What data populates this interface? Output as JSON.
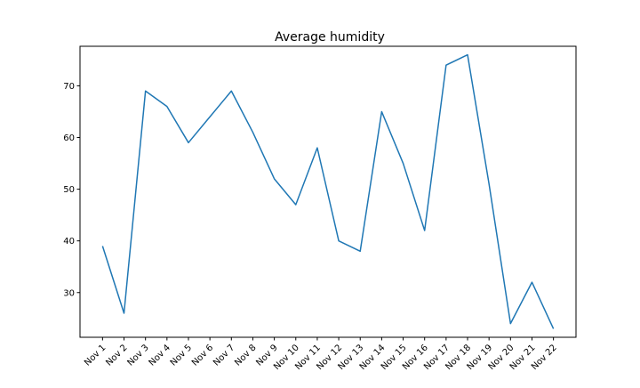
{
  "chart_data": {
    "type": "line",
    "title": "Average humidity",
    "xlabel": "",
    "ylabel": "",
    "categories": [
      "Nov 1",
      "Nov 2",
      "Nov 3",
      "Nov 4",
      "Nov 5",
      "Nov 6",
      "Nov 7",
      "Nov 8",
      "Nov 9",
      "Nov 10",
      "Nov 11",
      "Nov 12",
      "Nov 13",
      "Nov 14",
      "Nov 15",
      "Nov 16",
      "Nov 17",
      "Nov 18",
      "Nov 19",
      "Nov 20",
      "Nov 21",
      "Nov 22"
    ],
    "series": [
      {
        "values": [
          39,
          26,
          69,
          66,
          59,
          64,
          69,
          61,
          52,
          47,
          58,
          40,
          38,
          65,
          55,
          42,
          74,
          76,
          51,
          24,
          32,
          23
        ]
      }
    ],
    "ylim": [
      21.35,
      77.65
    ],
    "yticks": [
      30,
      40,
      50,
      60,
      70
    ],
    "grid": false,
    "line_color": "#1f77b4"
  }
}
